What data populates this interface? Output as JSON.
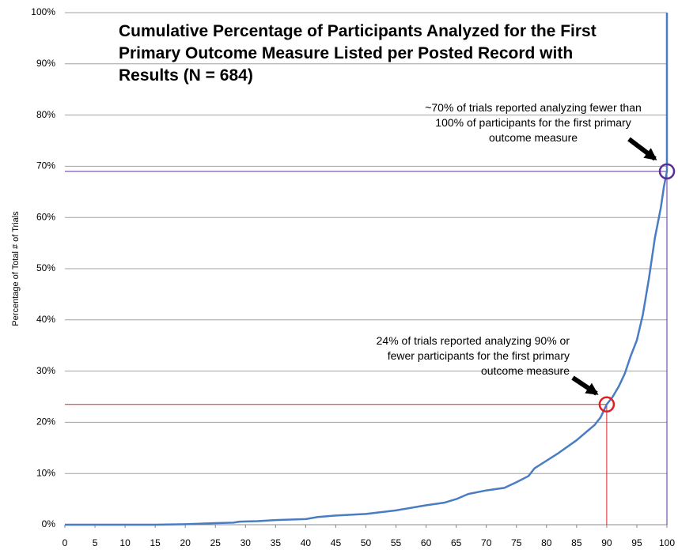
{
  "chart_data": {
    "type": "line",
    "title": "Cumulative Percentage of Participants Analyzed for the First Primary Outcome Measure Listed per Posted Record with Results (N = 684)",
    "ylabel": "Percentage of Total # of Trials",
    "annotations": [
      "~70% of trials reported analyzing fewer than 100% of participants for the first primary outcome measure",
      "24% of trials reported analyzing 90% or fewer participants for the first primary outcome measure"
    ],
    "color": "#4a7cc4",
    "x": [
      0,
      15,
      20,
      25,
      28,
      29,
      32,
      35,
      40,
      42,
      45,
      50,
      55,
      60,
      63,
      65,
      67,
      70,
      73,
      75,
      77,
      78,
      80,
      82,
      85,
      87,
      88,
      89,
      90,
      91,
      92,
      93,
      94,
      95,
      96,
      97,
      98,
      99,
      99.5,
      100,
      100
    ],
    "values": [
      0,
      0,
      0.1,
      0.3,
      0.4,
      0.6,
      0.7,
      0.9,
      1.1,
      1.5,
      1.8,
      2.1,
      2.8,
      3.8,
      4.3,
      5.0,
      6.0,
      6.7,
      7.2,
      8.3,
      9.5,
      11,
      12.5,
      14,
      16.5,
      18.5,
      19.5,
      21,
      23.5,
      25,
      27,
      29.5,
      33,
      36,
      41,
      48,
      56,
      62,
      66,
      69,
      100
    ],
    "reference_points": [
      {
        "x": 90,
        "y": 23.5,
        "color": "#e02020"
      },
      {
        "x": 100,
        "y": 69,
        "color": "#5a2e98"
      }
    ],
    "xlim": [
      0,
      100
    ],
    "ylim": [
      0,
      100
    ],
    "xticks": [
      0,
      5,
      10,
      15,
      20,
      25,
      30,
      35,
      40,
      45,
      50,
      55,
      60,
      65,
      70,
      75,
      80,
      85,
      90,
      95,
      100
    ],
    "yticks": [
      {
        "value": 0,
        "label": "0%"
      },
      {
        "value": 10,
        "label": "10%"
      },
      {
        "value": 20,
        "label": "20%"
      },
      {
        "value": 30,
        "label": "30%"
      },
      {
        "value": 40,
        "label": "40%"
      },
      {
        "value": 50,
        "label": "50%"
      },
      {
        "value": 60,
        "label": "60%"
      },
      {
        "value": 70,
        "label": "70%"
      },
      {
        "value": 80,
        "label": "80%"
      },
      {
        "value": 90,
        "label": "90%"
      },
      {
        "value": 100,
        "label": "100%"
      }
    ],
    "grid": true
  }
}
